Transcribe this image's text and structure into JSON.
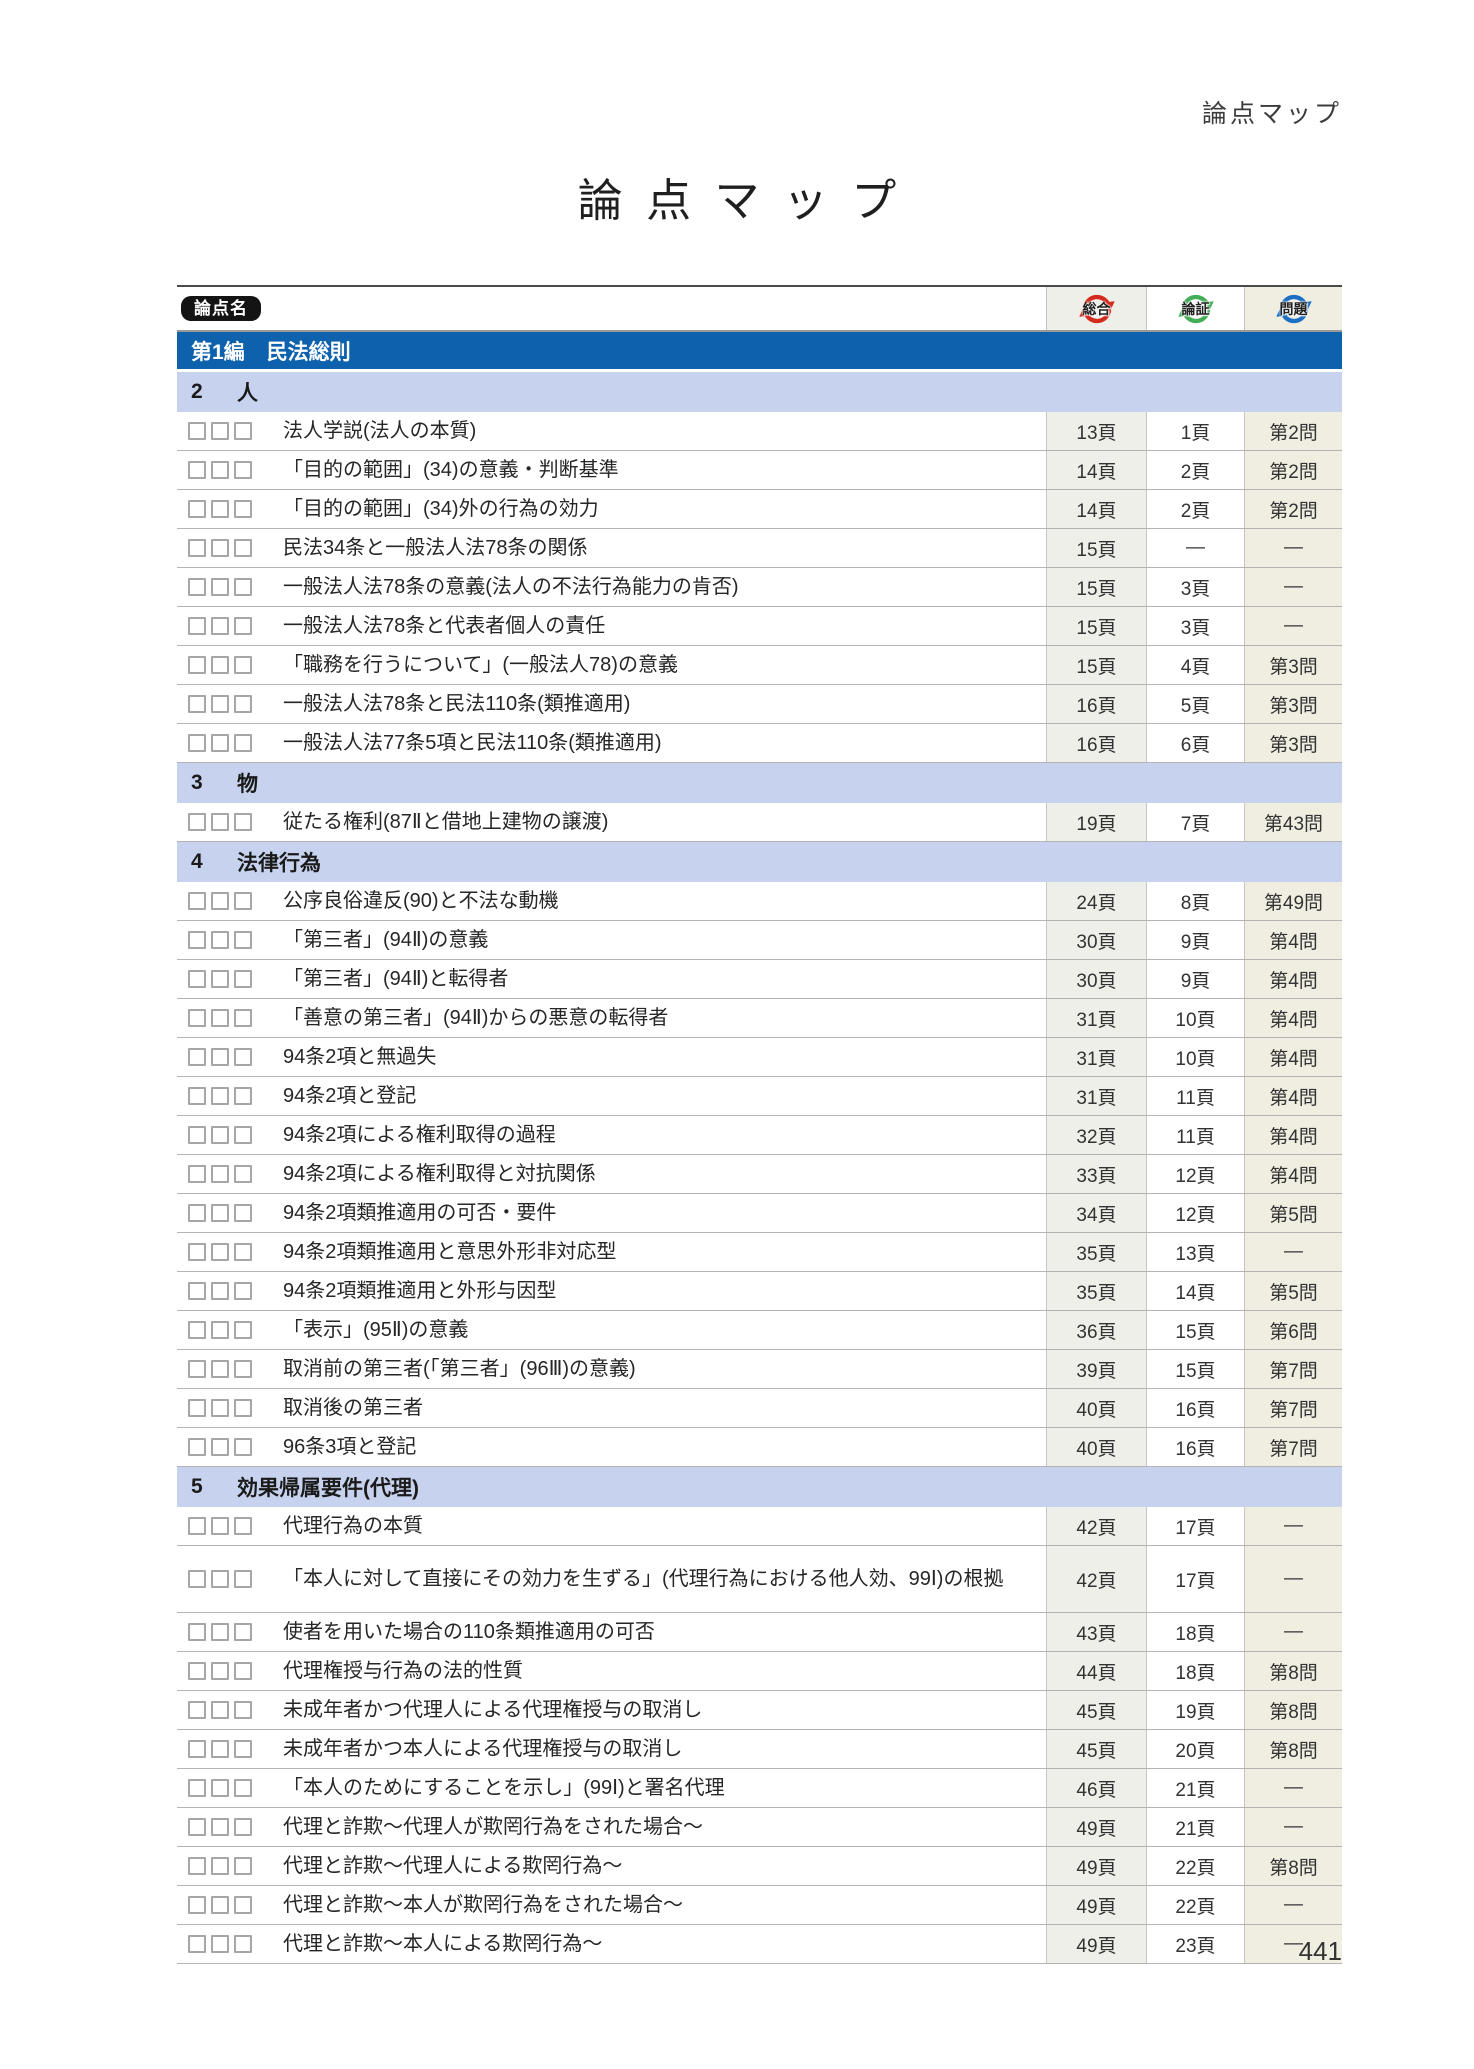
{
  "page": {
    "corner_header": "論点マップ",
    "title": "論点マップ",
    "page_number": "441"
  },
  "table": {
    "header": {
      "topic_label": "論点名",
      "columns": [
        {
          "key": "sogo",
          "label": "総合",
          "color": "#d5291d",
          "bg": "#edefe8"
        },
        {
          "key": "ronsho",
          "label": "論証",
          "color": "#43ad58",
          "bg": "#ffffff"
        },
        {
          "key": "mondai",
          "label": "問題",
          "color": "#1c6fc4",
          "bg": "#f0eee1"
        }
      ]
    },
    "accent": {
      "part_bar": "#0e61ad",
      "chapter_bar": "#c7d3ee"
    },
    "sections": [
      {
        "type": "part",
        "num": "第1編",
        "title": "民法総則"
      },
      {
        "type": "chapter",
        "num": "2",
        "title": "人"
      },
      {
        "type": "row",
        "topic": "法人学説(法人の本質)",
        "p1": "13頁",
        "p2": "1頁",
        "p3": "第2問"
      },
      {
        "type": "row",
        "topic": "「目的の範囲」(34)の意義・判断基準",
        "p1": "14頁",
        "p2": "2頁",
        "p3": "第2問"
      },
      {
        "type": "row",
        "topic": "「目的の範囲」(34)外の行為の効力",
        "p1": "14頁",
        "p2": "2頁",
        "p3": "第2問"
      },
      {
        "type": "row",
        "topic": "民法34条と一般法人法78条の関係",
        "p1": "15頁",
        "p2": "—",
        "p3": "—"
      },
      {
        "type": "row",
        "topic": "一般法人法78条の意義(法人の不法行為能力の肯否)",
        "p1": "15頁",
        "p2": "3頁",
        "p3": "—"
      },
      {
        "type": "row",
        "topic": "一般法人法78条と代表者個人の責任",
        "p1": "15頁",
        "p2": "3頁",
        "p3": "—"
      },
      {
        "type": "row",
        "topic": "「職務を行うについて」(一般法人78)の意義",
        "p1": "15頁",
        "p2": "4頁",
        "p3": "第3問"
      },
      {
        "type": "row",
        "topic": "一般法人法78条と民法110条(類推適用)",
        "p1": "16頁",
        "p2": "5頁",
        "p3": "第3問"
      },
      {
        "type": "row",
        "topic": "一般法人法77条5項と民法110条(類推適用)",
        "p1": "16頁",
        "p2": "6頁",
        "p3": "第3問"
      },
      {
        "type": "chapter",
        "num": "3",
        "title": "物"
      },
      {
        "type": "row",
        "topic": "従たる権利(87Ⅱと借地上建物の譲渡)",
        "p1": "19頁",
        "p2": "7頁",
        "p3": "第43問"
      },
      {
        "type": "chapter",
        "num": "4",
        "title": "法律行為"
      },
      {
        "type": "row",
        "topic": "公序良俗違反(90)と不法な動機",
        "p1": "24頁",
        "p2": "8頁",
        "p3": "第49問"
      },
      {
        "type": "row",
        "topic": "「第三者」(94Ⅱ)の意義",
        "p1": "30頁",
        "p2": "9頁",
        "p3": "第4問"
      },
      {
        "type": "row",
        "topic": "「第三者」(94Ⅱ)と転得者",
        "p1": "30頁",
        "p2": "9頁",
        "p3": "第4問"
      },
      {
        "type": "row",
        "topic": "「善意の第三者」(94Ⅱ)からの悪意の転得者",
        "p1": "31頁",
        "p2": "10頁",
        "p3": "第4問"
      },
      {
        "type": "row",
        "topic": "94条2項と無過失",
        "p1": "31頁",
        "p2": "10頁",
        "p3": "第4問"
      },
      {
        "type": "row",
        "topic": "94条2項と登記",
        "p1": "31頁",
        "p2": "11頁",
        "p3": "第4問"
      },
      {
        "type": "row",
        "topic": "94条2項による権利取得の過程",
        "p1": "32頁",
        "p2": "11頁",
        "p3": "第4問"
      },
      {
        "type": "row",
        "topic": "94条2項による権利取得と対抗関係",
        "p1": "33頁",
        "p2": "12頁",
        "p3": "第4問"
      },
      {
        "type": "row",
        "topic": "94条2項類推適用の可否・要件",
        "p1": "34頁",
        "p2": "12頁",
        "p3": "第5問"
      },
      {
        "type": "row",
        "topic": "94条2項類推適用と意思外形非対応型",
        "p1": "35頁",
        "p2": "13頁",
        "p3": "—"
      },
      {
        "type": "row",
        "topic": "94条2項類推適用と外形与因型",
        "p1": "35頁",
        "p2": "14頁",
        "p3": "第5問"
      },
      {
        "type": "row",
        "topic": "「表示」(95Ⅱ)の意義",
        "p1": "36頁",
        "p2": "15頁",
        "p3": "第6問"
      },
      {
        "type": "row",
        "topic": "取消前の第三者(「第三者」(96Ⅲ)の意義)",
        "p1": "39頁",
        "p2": "15頁",
        "p3": "第7問"
      },
      {
        "type": "row",
        "topic": "取消後の第三者",
        "p1": "40頁",
        "p2": "16頁",
        "p3": "第7問"
      },
      {
        "type": "row",
        "topic": "96条3項と登記",
        "p1": "40頁",
        "p2": "16頁",
        "p3": "第7問"
      },
      {
        "type": "chapter",
        "num": "5",
        "title": "効果帰属要件(代理)"
      },
      {
        "type": "row",
        "topic": "代理行為の本質",
        "p1": "42頁",
        "p2": "17頁",
        "p3": "—"
      },
      {
        "type": "row",
        "tall": true,
        "topic": "「本人に対して直接にその効力を生ずる」(代理行為における他人効、99Ⅰ)の根拠",
        "p1": "42頁",
        "p2": "17頁",
        "p3": "—"
      },
      {
        "type": "row",
        "topic": "使者を用いた場合の110条類推適用の可否",
        "p1": "43頁",
        "p2": "18頁",
        "p3": "—"
      },
      {
        "type": "row",
        "topic": "代理権授与行為の法的性質",
        "p1": "44頁",
        "p2": "18頁",
        "p3": "第8問"
      },
      {
        "type": "row",
        "topic": "未成年者かつ代理人による代理権授与の取消し",
        "p1": "45頁",
        "p2": "19頁",
        "p3": "第8問"
      },
      {
        "type": "row",
        "topic": "未成年者かつ本人による代理権授与の取消し",
        "p1": "45頁",
        "p2": "20頁",
        "p3": "第8問"
      },
      {
        "type": "row",
        "topic": "「本人のためにすることを示し」(99Ⅰ)と署名代理",
        "p1": "46頁",
        "p2": "21頁",
        "p3": "—"
      },
      {
        "type": "row",
        "topic": "代理と詐欺〜代理人が欺罔行為をされた場合〜",
        "p1": "49頁",
        "p2": "21頁",
        "p3": "—"
      },
      {
        "type": "row",
        "topic": "代理と詐欺〜代理人による欺罔行為〜",
        "p1": "49頁",
        "p2": "22頁",
        "p3": "第8問"
      },
      {
        "type": "row",
        "topic": "代理と詐欺〜本人が欺罔行為をされた場合〜",
        "p1": "49頁",
        "p2": "22頁",
        "p3": "—"
      },
      {
        "type": "row",
        "topic": "代理と詐欺〜本人による欺罔行為〜",
        "p1": "49頁",
        "p2": "23頁",
        "p3": "—"
      }
    ]
  }
}
